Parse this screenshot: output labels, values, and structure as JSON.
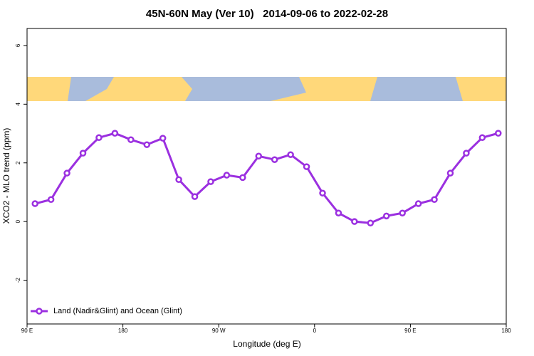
{
  "chart_data": {
    "type": "line",
    "title": "45N-60N May (Ver 10)   2014-09-06 to 2022-02-28",
    "x_label": "Longitude (deg E)",
    "y_label": "XCO2 - MLO trend (ppm)",
    "x": [
      97.5,
      112.5,
      127.5,
      142.5,
      157.5,
      172.5,
      187.5,
      202.5,
      217.5,
      232.5,
      247.5,
      262.5,
      277.5,
      292.5,
      307.5,
      322.5,
      337.5,
      352.5,
      367.5,
      382.5,
      397.5,
      412.5,
      427.5,
      442.5,
      457.5,
      472.5,
      487.5,
      502.5,
      517.5,
      532.5
    ],
    "series": [
      {
        "name": "Land (Nadir&Glint) and Ocean (Glint)",
        "color": "#9b30e0",
        "values": [
          0.61,
          0.75,
          1.65,
          2.33,
          2.86,
          3.01,
          2.79,
          2.62,
          2.84,
          1.43,
          0.85,
          1.36,
          1.58,
          1.5,
          2.23,
          2.11,
          2.28,
          1.87,
          0.97,
          0.29,
          0.0,
          -0.05,
          0.19,
          0.29,
          0.61,
          0.75,
          1.65,
          2.33,
          2.86,
          3.01
        ]
      }
    ],
    "xlim": [
      90,
      540
    ],
    "xticks": [
      {
        "value": 90,
        "label": "90 E"
      },
      180,
      {
        "value": 270,
        "label": "90 W"
      },
      {
        "value": 360,
        "label": "0"
      },
      {
        "value": 450,
        "label": "90 E"
      },
      {
        "value": 540,
        "label": "180"
      }
    ],
    "ylim": [
      -3.49,
      6.58
    ],
    "yticks": [
      -2,
      0,
      2,
      4,
      6
    ],
    "grid": false,
    "legend": "bottom-left"
  }
}
